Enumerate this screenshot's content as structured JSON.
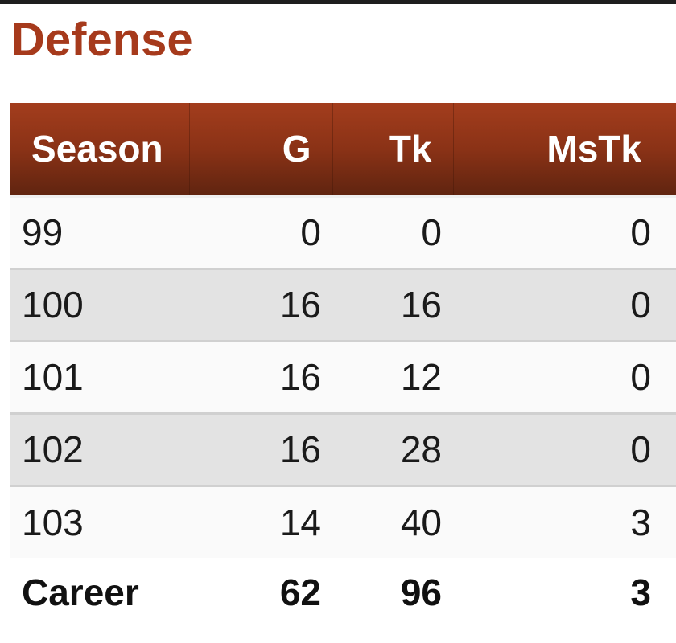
{
  "section": {
    "title": "Defense"
  },
  "table": {
    "headers": {
      "season": "Season",
      "g": "G",
      "tk": "Tk",
      "mstk": "MsTk"
    },
    "rows": [
      {
        "season": "99",
        "g": "0",
        "tk": "0",
        "mstk": "0"
      },
      {
        "season": "100",
        "g": "16",
        "tk": "16",
        "mstk": "0"
      },
      {
        "season": "101",
        "g": "16",
        "tk": "12",
        "mstk": "0"
      },
      {
        "season": "102",
        "g": "16",
        "tk": "28",
        "mstk": "0"
      },
      {
        "season": "103",
        "g": "14",
        "tk": "40",
        "mstk": "3"
      }
    ],
    "career": {
      "season": "Career",
      "g": "62",
      "tk": "96",
      "mstk": "3"
    }
  },
  "colors": {
    "title": "#a63a1c",
    "header_top": "#a33d1d",
    "header_bottom": "#5f2410",
    "row_alt": "#e3e3e3"
  }
}
